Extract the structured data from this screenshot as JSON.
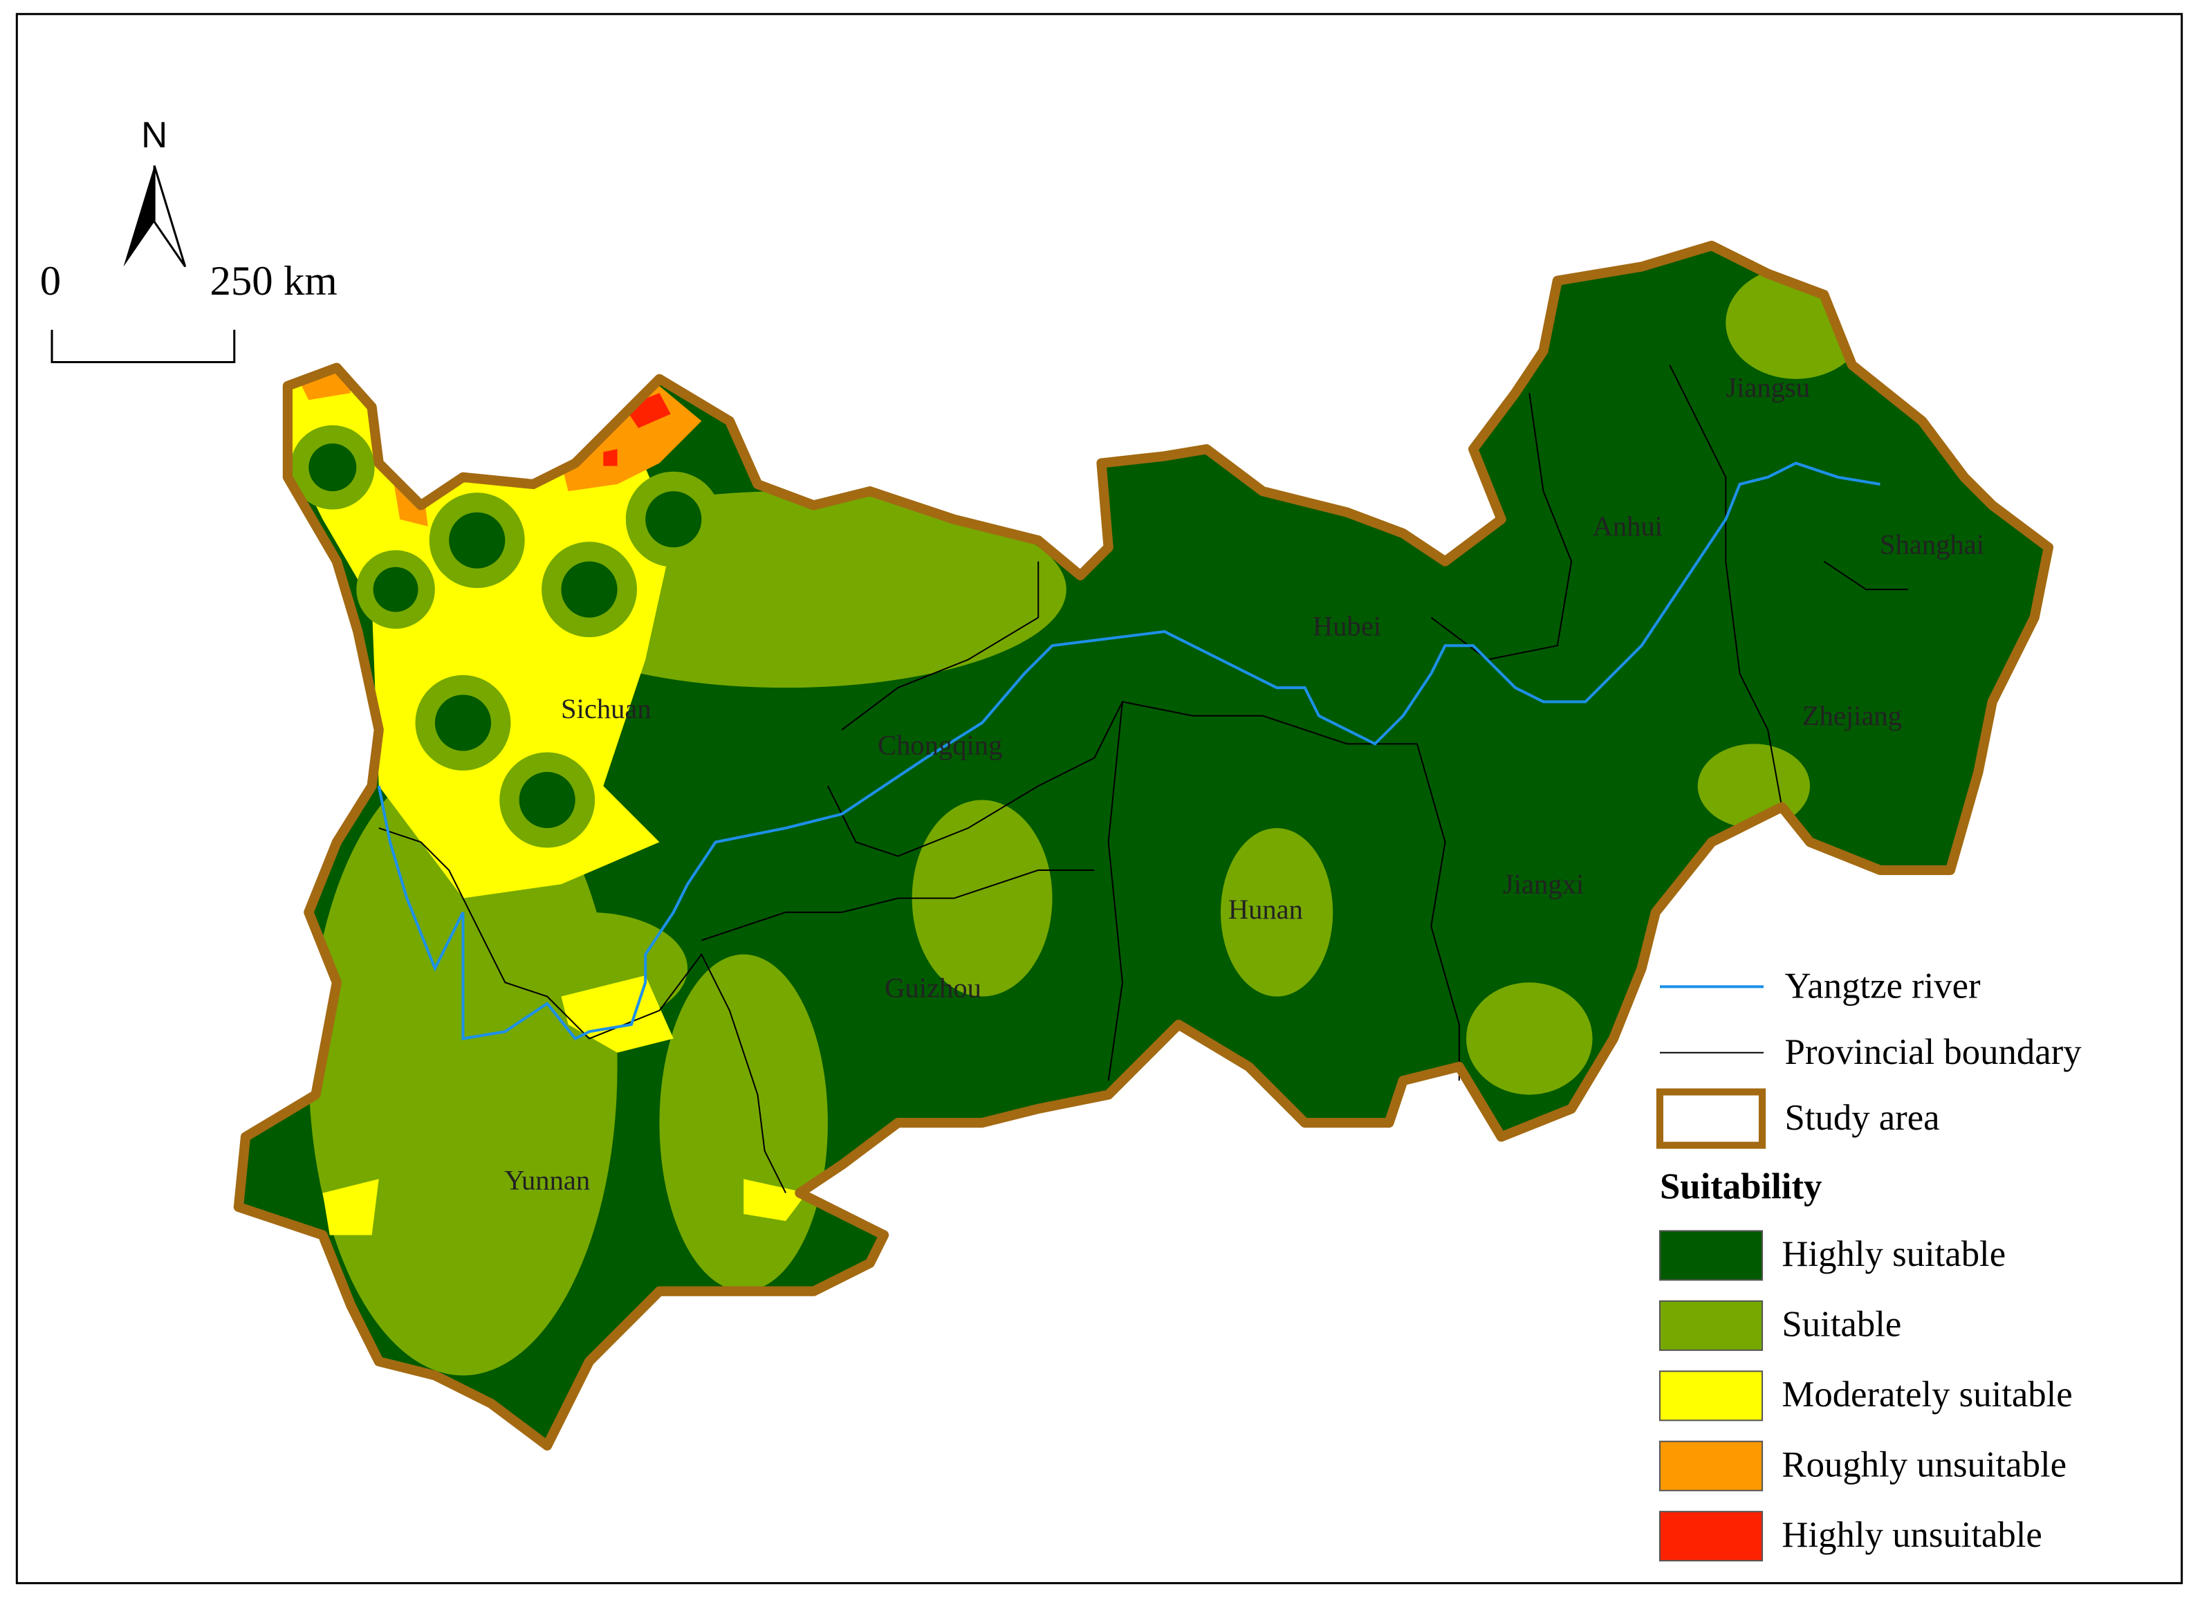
{
  "north_arrow": {
    "label": "N"
  },
  "scale_bar": {
    "start": "0",
    "end": "250 km"
  },
  "provinces": [
    "Sichuan",
    "Chongqing",
    "Hubei",
    "Anhui",
    "Jiangsu",
    "Shanghai",
    "Zhejiang",
    "Jiangxi",
    "Hunan",
    "Guizhou",
    "Yunnan"
  ],
  "legend": {
    "lines": [
      {
        "label": "Yangtze river",
        "color": "#1e90e8"
      },
      {
        "label": "Provincial boundary",
        "color": "#000000"
      },
      {
        "label": "Study area",
        "color": "#a36a12"
      }
    ],
    "title": "Suitability",
    "classes": [
      {
        "label": "Highly suitable",
        "color": "#005a00"
      },
      {
        "label": "Suitable",
        "color": "#76a800"
      },
      {
        "label": "Moderately suitable",
        "color": "#ffff00"
      },
      {
        "label": "Roughly unsuitable",
        "color": "#ff9900"
      },
      {
        "label": "Highly unsuitable",
        "color": "#ff2200"
      }
    ]
  }
}
